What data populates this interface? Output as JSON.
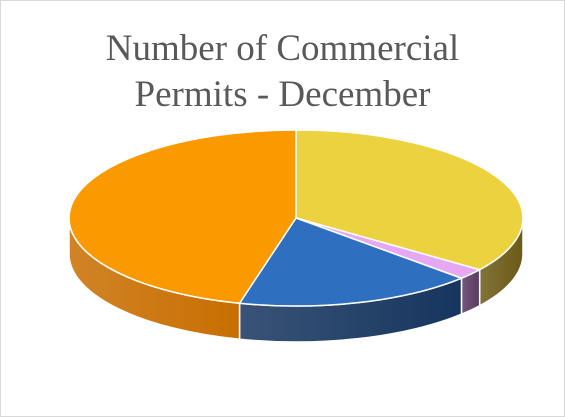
{
  "chart_data": {
    "type": "pie",
    "title_lines": [
      "Number of Commercial",
      "Permits - December"
    ],
    "slices": [
      {
        "value": 35,
        "color": "#EDD240",
        "side_color": "#6B5A16"
      },
      {
        "value": 2,
        "color": "#E7A8F3",
        "side_color": "#5C3A63"
      },
      {
        "value": 17,
        "color": "#2E6FC0",
        "side_color": "#16355E"
      },
      {
        "value": 46,
        "color": "#FA9A00",
        "side_color": "#C86E00"
      }
    ],
    "legend": "none",
    "style": "3d"
  }
}
